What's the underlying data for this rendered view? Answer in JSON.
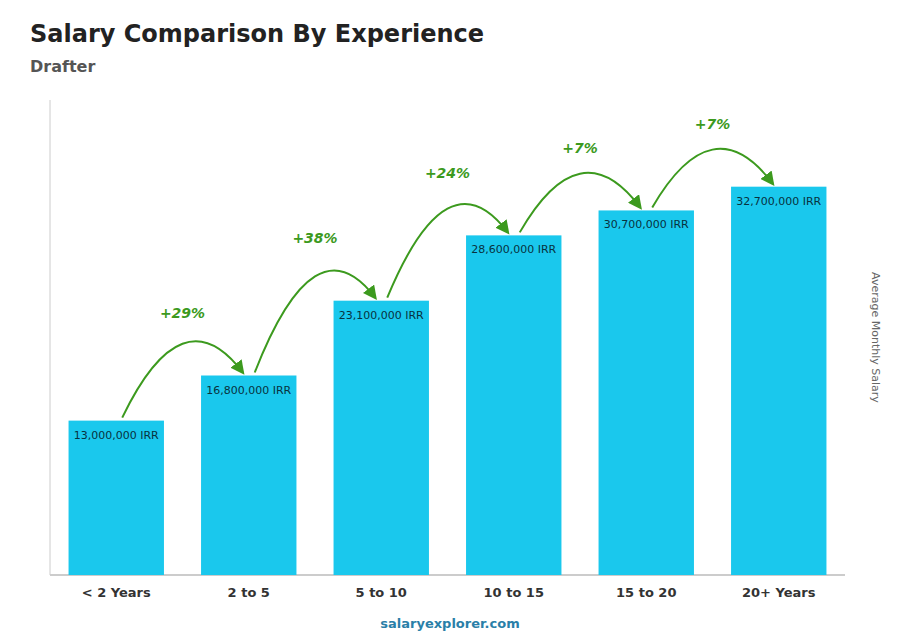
{
  "chart_data": {
    "type": "bar",
    "title": "Salary Comparison By Experience",
    "subtitle": "Drafter",
    "ylabel": "Average Monthly Salary",
    "categories": [
      "< 2 Years",
      "2 to 5",
      "5 to 10",
      "10 to 15",
      "15 to 20",
      "20+ Years"
    ],
    "values": [
      13000000,
      16800000,
      23100000,
      28600000,
      30700000,
      32700000
    ],
    "value_labels": [
      "13,000,000 IRR",
      "16,800,000 IRR",
      "23,100,000 IRR",
      "28,600,000 IRR",
      "30,700,000 IRR",
      "32,700,000 IRR"
    ],
    "data_labels": true,
    "annotations": [
      {
        "text": "+29%",
        "from": "< 2 Years",
        "to": "2 to 5"
      },
      {
        "text": "+38%",
        "from": "2 to 5",
        "to": "5 to 10"
      },
      {
        "text": "+24%",
        "from": "5 to 10",
        "to": "10 to 15"
      },
      {
        "text": "+7%",
        "from": "10 to 15",
        "to": "15 to 20"
      },
      {
        "text": "+7%",
        "from": "15 to 20",
        "to": "20+ Years"
      }
    ],
    "footer": "salaryexplorer.com",
    "color": "#1ac8ed",
    "ylim": [
      0,
      40000000
    ],
    "tick_labels": "x",
    "grid": false
  }
}
